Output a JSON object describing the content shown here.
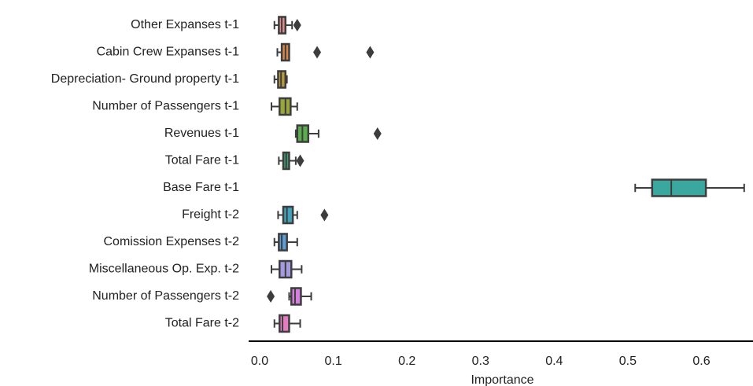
{
  "chart_data": {
    "type": "boxplot",
    "orientation": "horizontal",
    "title": "",
    "xlabel": "Importance",
    "ylabel": "",
    "xlim": [
      -0.015,
      0.67
    ],
    "xticks": [
      0.0,
      0.1,
      0.2,
      0.3,
      0.4,
      0.5,
      0.6
    ],
    "xtick_labels": [
      "0.0",
      "0.1",
      "0.2",
      "0.3",
      "0.4",
      "0.5",
      "0.6"
    ],
    "grid": false,
    "categories": [
      "Other Expanses t-1",
      "Cabin Crew Expanses t-1",
      "Depreciation- Ground property t-1",
      "Number of Passengers t-1",
      "Revenues t-1",
      "Total Fare t-1",
      "Base Fare t-1",
      "Freight t-2",
      "Comission Expenses t-2",
      "Miscellaneous Op. Exp. t-2",
      "Number of Passengers  t-2",
      "Total Fare t-2"
    ],
    "boxes": [
      {
        "whisker_low": 0.02,
        "q1": 0.026,
        "median": 0.03,
        "q3": 0.035,
        "whisker_high": 0.044,
        "outliers": [
          0.051
        ],
        "color": "#e58a8d"
      },
      {
        "whisker_low": 0.024,
        "q1": 0.03,
        "median": 0.035,
        "q3": 0.04,
        "whisker_high": 0.04,
        "outliers": [
          0.078,
          0.15
        ],
        "color": "#d9884d"
      },
      {
        "whisker_low": 0.02,
        "q1": 0.025,
        "median": 0.029,
        "q3": 0.035,
        "whisker_high": 0.037,
        "outliers": [],
        "color": "#b79a3e"
      },
      {
        "whisker_low": 0.016,
        "q1": 0.027,
        "median": 0.035,
        "q3": 0.042,
        "whisker_high": 0.051,
        "outliers": [],
        "color": "#9aa63c"
      },
      {
        "whisker_low": 0.049,
        "q1": 0.051,
        "median": 0.058,
        "q3": 0.066,
        "whisker_high": 0.08,
        "outliers": [
          0.16
        ],
        "color": "#59ad4c"
      },
      {
        "whisker_low": 0.026,
        "q1": 0.032,
        "median": 0.036,
        "q3": 0.04,
        "whisker_high": 0.049,
        "outliers": [
          0.055
        ],
        "color": "#3b9f70"
      },
      {
        "whisker_low": 0.51,
        "q1": 0.533,
        "median": 0.559,
        "q3": 0.606,
        "whisker_high": 0.658,
        "outliers": [],
        "color": "#3aa89e"
      },
      {
        "whisker_low": 0.025,
        "q1": 0.032,
        "median": 0.037,
        "q3": 0.045,
        "whisker_high": 0.051,
        "outliers": [
          0.088
        ],
        "color": "#3fa3bd"
      },
      {
        "whisker_low": 0.02,
        "q1": 0.026,
        "median": 0.03,
        "q3": 0.037,
        "whisker_high": 0.051,
        "outliers": [],
        "color": "#5b9fd8"
      },
      {
        "whisker_low": 0.016,
        "q1": 0.027,
        "median": 0.035,
        "q3": 0.043,
        "whisker_high": 0.057,
        "outliers": [],
        "color": "#a69ae0"
      },
      {
        "whisker_low": 0.04,
        "q1": 0.043,
        "median": 0.048,
        "q3": 0.056,
        "whisker_high": 0.07,
        "outliers": [
          0.015
        ],
        "color": "#d47fe0"
      },
      {
        "whisker_low": 0.02,
        "q1": 0.027,
        "median": 0.031,
        "q3": 0.04,
        "whisker_high": 0.055,
        "outliers": [],
        "color": "#e27dc0"
      }
    ]
  }
}
